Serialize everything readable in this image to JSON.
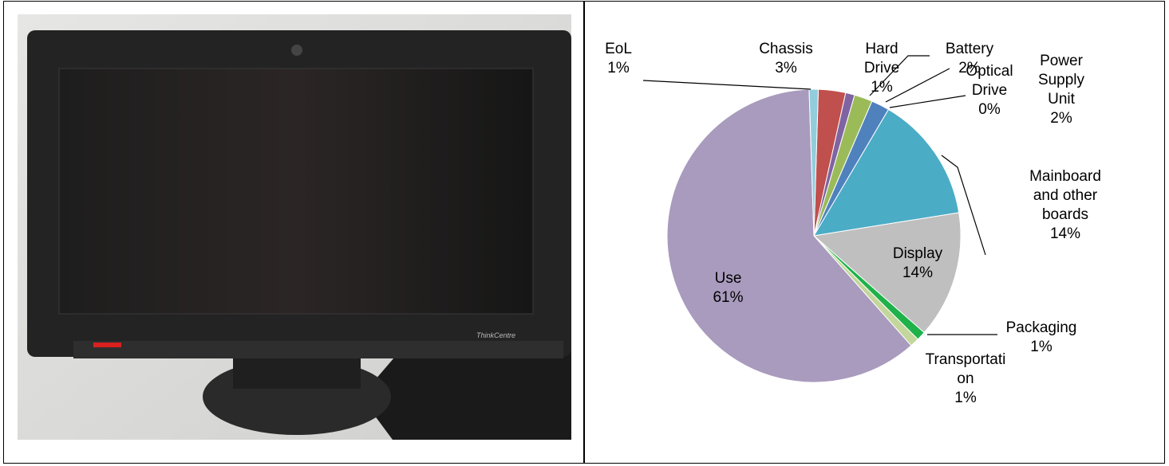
{
  "chart_data": {
    "type": "pie",
    "categories": [
      "Chassis",
      "Hard Drive",
      "Battery",
      "Optical Drive",
      "Power Supply Unit",
      "Mainboard and other boards",
      "Display",
      "Packaging",
      "Transportation",
      "Use",
      "EoL"
    ],
    "values": [
      3,
      1,
      2,
      0,
      2,
      14,
      14,
      1,
      1,
      61,
      1
    ],
    "value_labels": [
      "3%",
      "1%",
      "2%",
      "0%",
      "2%",
      "14%",
      "14%",
      "1%",
      "1%",
      "61%",
      "1%"
    ],
    "colors": [
      "#c0504d",
      "#8064a2",
      "#9bbb59",
      "#f79646",
      "#4f81bd",
      "#4bacc6",
      "#bfbfbf",
      "#1fb24a",
      "#c3d69b",
      "#a99bbd",
      "#92cddc"
    ]
  }
}
